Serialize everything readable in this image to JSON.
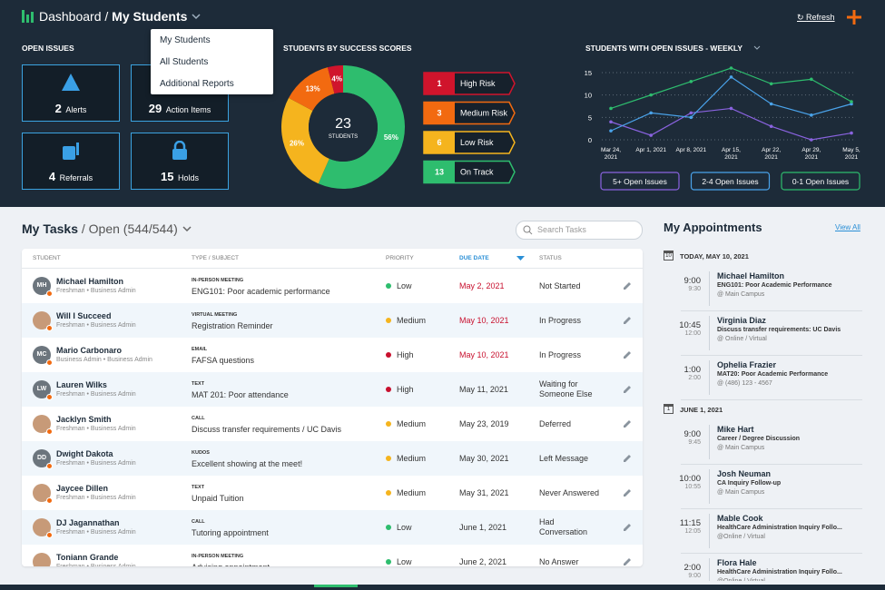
{
  "header": {
    "title": "Dashboard",
    "separator": "/",
    "current": "My Students",
    "refresh": "Refresh",
    "menu": [
      "My Students",
      "All Students",
      "Additional Reports"
    ]
  },
  "open_issues": {
    "title": "OPEN ISSUES",
    "tiles": [
      {
        "count": 2,
        "label": "Alerts"
      },
      {
        "count": 29,
        "label": "Action Items"
      },
      {
        "count": 4,
        "label": "Referrals"
      },
      {
        "count": 15,
        "label": "Holds"
      }
    ]
  },
  "chart_data": [
    {
      "type": "pie",
      "title": "STUDENTS BY SUCCESS SCORES",
      "categories": [
        "High Risk",
        "Medium Risk",
        "Low Risk",
        "On Track"
      ],
      "values": [
        4,
        13,
        26,
        56
      ],
      "value_labels": [
        "4%",
        "13%",
        "26%",
        "56%"
      ],
      "counts": [
        1,
        3,
        6,
        13
      ],
      "colors": [
        "#d0142c",
        "#f26a10",
        "#f5b41e",
        "#2ebd6e"
      ],
      "center_value": 23,
      "center_label": "STUDENTS"
    },
    {
      "type": "line",
      "title": "STUDENTS WITH OPEN ISSUES - WEEKLY",
      "categories": [
        "Mar 24, 2021",
        "Apr 1, 2021",
        "Apr 8, 2021",
        "Apr 15, 2021",
        "Apr 22, 2021",
        "Apr 29, 2021",
        "May 5, 2021"
      ],
      "series": [
        {
          "name": "5+ Open Issues",
          "color": "#8a63e0",
          "values": [
            4,
            1,
            6,
            7,
            3,
            0,
            1.5
          ]
        },
        {
          "name": "2-4 Open Issues",
          "color": "#4aa3ea",
          "values": [
            2,
            6,
            5,
            14,
            8,
            5.5,
            8
          ]
        },
        {
          "name": "0-1 Open Issues",
          "color": "#2ebd6e",
          "values": [
            7,
            10,
            13,
            16,
            12.5,
            13.5,
            8.5
          ]
        }
      ],
      "ylim": [
        0,
        16
      ],
      "yticks": [
        0,
        5,
        10,
        15
      ],
      "grid": true
    }
  ],
  "tasks": {
    "title": "My Tasks",
    "filter": "/ Open (544/544)",
    "search_placeholder": "Search Tasks",
    "columns": [
      "STUDENT",
      "TYPE / SUBJECT",
      "PRIORITY",
      "DUE DATE",
      "STATUS"
    ],
    "priority_colors": {
      "Low": "#2ebd6e",
      "Medium": "#f5b41e",
      "High": "#c8102e"
    },
    "rows": [
      {
        "name": "Michael Hamilton",
        "info": "Freshman • Business Admin",
        "initials": "MH",
        "type": "IN-PERSON MEETING",
        "subject": "ENG101: Poor academic performance",
        "priority": "Low",
        "due": "May 2, 2021",
        "overdue": true,
        "status": "Not Started"
      },
      {
        "name": "Will I Succeed",
        "info": "Freshman • Business Admin",
        "type": "VIRTUAL MEETING",
        "subject": "Registration Reminder",
        "priority": "Medium",
        "due": "May 10, 2021",
        "overdue": true,
        "status": "In Progress"
      },
      {
        "name": "Mario Carbonaro",
        "info": "Business Admin • Business Admin",
        "initials": "MC",
        "type": "EMAIL",
        "subject": "FAFSA questions",
        "priority": "High",
        "due": "May 10, 2021",
        "overdue": true,
        "status": "In Progress"
      },
      {
        "name": "Lauren Wilks",
        "info": "Freshman • Business Admin",
        "initials": "LW",
        "type": "TEXT",
        "subject": "MAT 201: Poor attendance",
        "priority": "High",
        "due": "May 11, 2021",
        "overdue": false,
        "status": "Waiting for Someone Else"
      },
      {
        "name": "Jacklyn Smith",
        "info": "Freshman • Business Admin",
        "type": "CALL",
        "subject": "Discuss transfer requirements / UC Davis",
        "priority": "Medium",
        "due": "May 23, 2019",
        "overdue": false,
        "status": "Deferred"
      },
      {
        "name": "Dwight Dakota",
        "info": "Freshman • Business Admin",
        "initials": "DD",
        "type": "KUDOS",
        "subject": "Excellent showing at the meet!",
        "priority": "Medium",
        "due": "May 30, 2021",
        "overdue": false,
        "status": "Left Message"
      },
      {
        "name": "Jaycee Dillen",
        "info": "Freshman • Business Admin",
        "type": "TEXT",
        "subject": "Unpaid Tuition",
        "priority": "Medium",
        "due": "May 31, 2021",
        "overdue": false,
        "status": "Never Answered"
      },
      {
        "name": "DJ Jagannathan",
        "info": "Freshman • Business Admin",
        "type": "CALL",
        "subject": "Tutoring appointment",
        "priority": "Low",
        "due": "June 1, 2021",
        "overdue": false,
        "status": "Had Conversation"
      },
      {
        "name": "Toniann Grande",
        "info": "Freshman • Business Admin",
        "type": "IN-PERSON MEETING",
        "subject": "Advising appointment",
        "priority": "Low",
        "due": "June 2, 2021",
        "overdue": false,
        "status": "No Answer"
      }
    ]
  },
  "appointments": {
    "title": "My Appointments",
    "view_all": "View All",
    "groups": [
      {
        "day": 10,
        "label": "TODAY, MAY 10, 2021",
        "items": [
          {
            "start": "9:00",
            "end": "9:30",
            "name": "Michael Hamilton",
            "desc": "ENG101: Poor Academic Performance",
            "location": "@ Main Campus"
          },
          {
            "start": "10:45",
            "end": "12:00",
            "name": "Virginia Diaz",
            "desc": "Discuss transfer requirements: UC Davis",
            "location": "@ Online / Virtual"
          },
          {
            "start": "1:00",
            "end": "2:00",
            "name": "Ophelia Frazier",
            "desc": "MAT20: Poor Academic Performance",
            "location": "@ (486) 123 - 4567"
          }
        ]
      },
      {
        "day": 1,
        "label": "JUNE 1, 2021",
        "items": [
          {
            "start": "9:00",
            "end": "9:45",
            "name": "Mike Hart",
            "desc": "Career / Degree Discussion",
            "location": "@ Main Campus"
          },
          {
            "start": "10:00",
            "end": "10:55",
            "name": "Josh Neuman",
            "desc": "CA Inquiry Follow-up",
            "location": "@ Main Campus"
          },
          {
            "start": "11:15",
            "end": "12:05",
            "name": "Mable Cook",
            "desc": "HealthCare Administration Inquiry Follo...",
            "location": "@Online / Virtual"
          },
          {
            "start": "2:00",
            "end": "9:00",
            "name": "Flora Hale",
            "desc": "HealthCare Administration Inquiry Follo...",
            "location": "@Online / Virtual"
          }
        ]
      }
    ]
  }
}
